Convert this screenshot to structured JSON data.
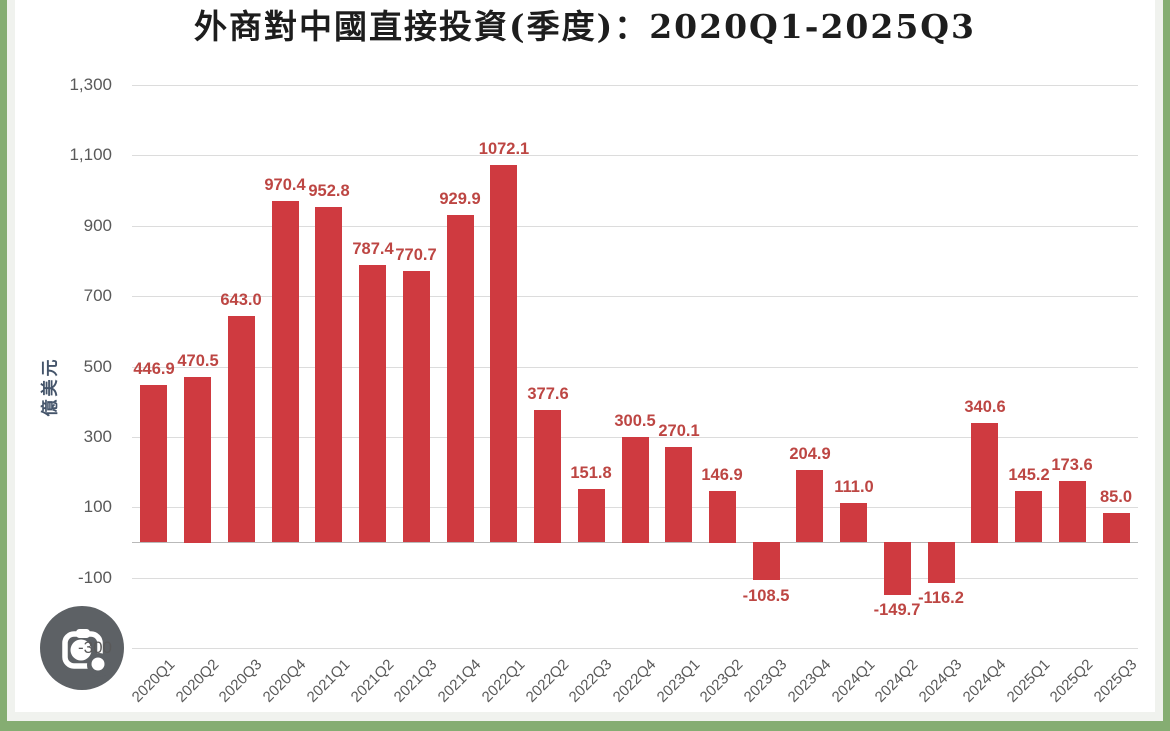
{
  "chart_data": {
    "type": "bar",
    "title": "外商對中國直接投資(季度)：2020Q1-2025Q3",
    "ylabel": "億美元",
    "xlabel": "",
    "categories": [
      "2020Q1",
      "2020Q2",
      "2020Q3",
      "2020Q4",
      "2021Q1",
      "2021Q2",
      "2021Q3",
      "2021Q4",
      "2022Q1",
      "2022Q2",
      "2022Q3",
      "2022Q4",
      "2023Q1",
      "2023Q2",
      "2023Q3",
      "2023Q4",
      "2024Q1",
      "2024Q2",
      "2024Q3",
      "2024Q4",
      "2025Q1",
      "2025Q2",
      "2025Q3"
    ],
    "values": [
      446.9,
      470.5,
      643.0,
      970.4,
      952.8,
      787.4,
      770.7,
      929.9,
      1072.1,
      377.6,
      151.8,
      300.5,
      270.1,
      146.9,
      -108.5,
      204.9,
      111.0,
      -149.7,
      -116.2,
      340.6,
      145.2,
      173.6,
      85.0
    ],
    "data_labels": [
      "446.9",
      "470.5",
      "643.0",
      "970.4",
      "952.8",
      "787.4",
      "770.7",
      "929.9",
      "1072.1",
      "377.6",
      "151.8",
      "300.5",
      "270.1",
      "146.9",
      "-108.5",
      "204.9",
      "111.0",
      "-149.7",
      "-116.2",
      "340.6",
      "145.2",
      "173.6",
      "85.0"
    ],
    "ylim": [
      -300,
      1300
    ],
    "yticks": {
      "values": [
        1300,
        1100,
        900,
        700,
        500,
        300,
        100,
        -100,
        -300
      ],
      "labels": [
        "1,300",
        "1,100",
        "900",
        "700",
        "500",
        "300",
        "100",
        "-100",
        "-300"
      ]
    },
    "grid": true,
    "legend": "none",
    "bar_color": "#cf3a40",
    "label_color": "#bd4643"
  },
  "overlay": {
    "lens_button_color": "#5d6165",
    "lens_button_title": "camera lens search"
  },
  "frame": {
    "border_color": "#85ad72"
  }
}
